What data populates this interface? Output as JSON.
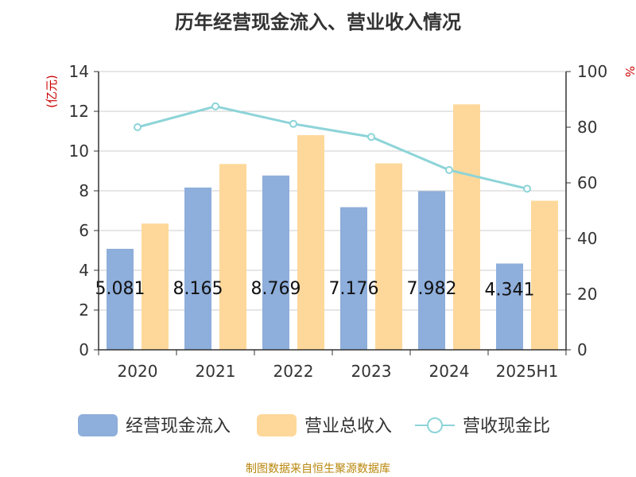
{
  "chart_data": {
    "type": "bar",
    "title": "历年经营现金流入、营业收入情况",
    "categories": [
      "2020",
      "2021",
      "2022",
      "2023",
      "2024",
      "2025H1"
    ],
    "y_left": {
      "label": "(亿元)",
      "range": [
        0,
        14
      ],
      "ticks": [
        "0",
        "2",
        "4",
        "6",
        "8",
        "10",
        "12",
        "14"
      ]
    },
    "y_right": {
      "label": "%",
      "range": [
        0,
        100
      ],
      "ticks": [
        "0",
        "20",
        "40",
        "60",
        "80",
        "100"
      ]
    },
    "grid": true,
    "legend_position": "bottom",
    "series": [
      {
        "name": "经营现金流入",
        "type": "bar",
        "axis": "left",
        "color": "#8eaedb",
        "values": [
          5.081,
          8.165,
          8.769,
          7.176,
          7.982,
          4.341
        ],
        "labels": [
          "5.081",
          "8.165",
          "8.769",
          "7.176",
          "7.982",
          "4.341"
        ]
      },
      {
        "name": "营业总收入",
        "type": "bar",
        "axis": "left",
        "color": "#fed89a",
        "values": [
          6.35,
          9.35,
          10.8,
          9.38,
          12.35,
          7.5
        ]
      },
      {
        "name": "营收现金比",
        "type": "line",
        "axis": "right",
        "color": "#8dd4d8",
        "values": [
          80.0,
          87.5,
          81.2,
          76.5,
          64.6,
          57.9
        ]
      }
    ]
  },
  "source": "制图数据来自恒生聚源数据库"
}
